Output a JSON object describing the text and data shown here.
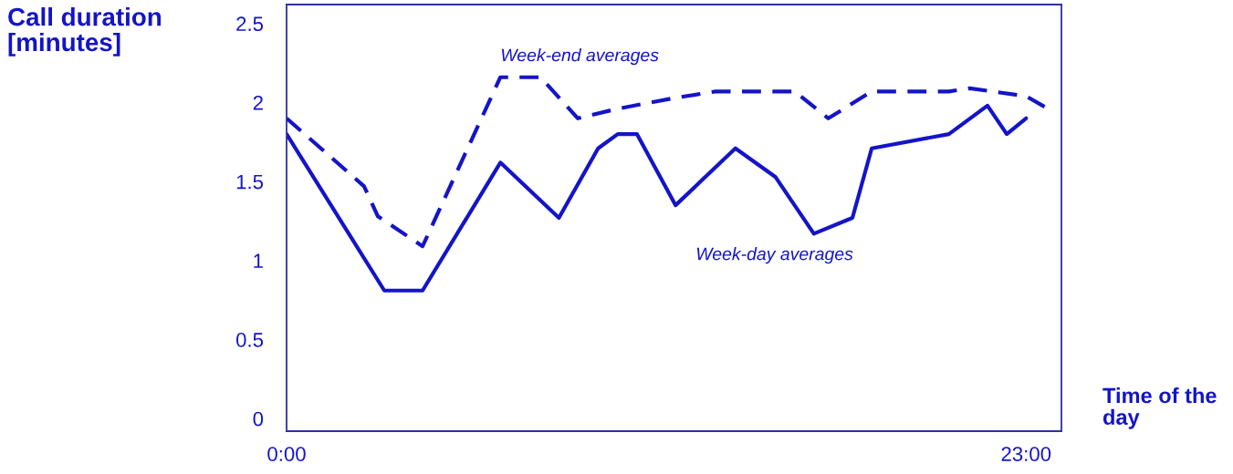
{
  "chart_data": {
    "type": "line",
    "xlabel": "Time of the day",
    "ylabel": "Call duration [minutes]",
    "xlim": [
      0,
      24.1
    ],
    "xticks": [
      {
        "value": 0,
        "label": "0:00"
      },
      {
        "value": 23,
        "label": "23:00"
      }
    ],
    "ylim": [
      -0.08,
      2.62
    ],
    "yticks": [
      0,
      0.5,
      1,
      1.5,
      2,
      2.5
    ],
    "grid": false,
    "legend": false,
    "marker": "none",
    "series": [
      {
        "color": "#1414c8",
        "line_style": "solid",
        "x": [
          0,
          3.04,
          4.23,
          6.65,
          8.47,
          9.69,
          10.3,
          10.9,
          12.1,
          13.96,
          15.2,
          16.4,
          17.6,
          18.2,
          20.6,
          21.8,
          22.4,
          23.0
        ],
        "values": [
          1.8,
          0.81,
          0.81,
          1.62,
          1.27,
          1.71,
          1.8,
          1.8,
          1.35,
          1.71,
          1.53,
          1.17,
          1.27,
          1.71,
          1.8,
          1.98,
          1.8,
          1.9
        ]
      },
      {
        "color": "#1414c8",
        "line_style": "dashed",
        "x": [
          0,
          2.41,
          2.84,
          4.23,
          6.65,
          7.9,
          9.06,
          10.28,
          12.1,
          13.35,
          15.8,
          16.85,
          18.2,
          20.6,
          21.25,
          23.0,
          23.6
        ],
        "values": [
          1.9,
          1.47,
          1.28,
          1.09,
          2.16,
          2.16,
          1.9,
          1.96,
          2.03,
          2.07,
          2.07,
          1.9,
          2.07,
          2.07,
          2.09,
          2.04,
          1.97
        ]
      }
    ],
    "annotations": [
      "Week-end averages",
      "Week-day averages"
    ]
  }
}
